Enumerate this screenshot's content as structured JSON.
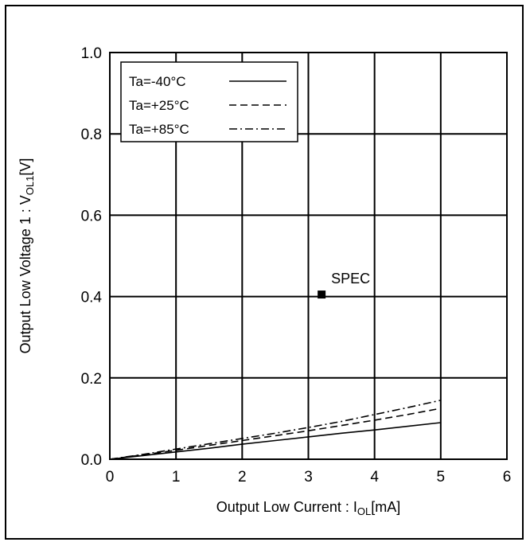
{
  "chart_data": {
    "type": "line",
    "xlabel_main": "Output Low Current : I",
    "xlabel_sub": "OL",
    "xlabel_unit": "[mA]",
    "ylabel_main": "Output Low Voltage 1 : V",
    "ylabel_sub": "OL1",
    "ylabel_unit": "[V]",
    "xlim": [
      0,
      6
    ],
    "ylim": [
      0,
      1.0
    ],
    "xticks": [
      "0",
      "1",
      "2",
      "3",
      "4",
      "5",
      "6"
    ],
    "yticks": [
      "0.0",
      "0.2",
      "0.4",
      "0.6",
      "0.8",
      "1.0"
    ],
    "grid": true,
    "legend_position": "top-left",
    "series": [
      {
        "name": "Ta=-40°C",
        "dash": "solid",
        "x": [
          0,
          0.5,
          1.0,
          1.5,
          2.0,
          2.5,
          3.0,
          3.5,
          4.0,
          4.5,
          5.0
        ],
        "y": [
          0.0,
          0.009,
          0.018,
          0.027,
          0.037,
          0.046,
          0.055,
          0.064,
          0.072,
          0.081,
          0.09
        ]
      },
      {
        "name": "Ta=+25°C",
        "dash": "dashed",
        "x": [
          0,
          0.5,
          1.0,
          1.5,
          2.0,
          2.5,
          3.0,
          3.5,
          4.0,
          4.5,
          5.0
        ],
        "y": [
          0.0,
          0.011,
          0.022,
          0.034,
          0.046,
          0.058,
          0.07,
          0.083,
          0.096,
          0.11,
          0.125
        ]
      },
      {
        "name": "Ta=+85°C",
        "dash": "dashdot",
        "x": [
          0,
          0.5,
          1.0,
          1.5,
          2.0,
          2.5,
          3.0,
          3.5,
          4.0,
          4.5,
          5.0
        ],
        "y": [
          0.0,
          0.012,
          0.025,
          0.038,
          0.051,
          0.064,
          0.078,
          0.093,
          0.11,
          0.127,
          0.145
        ]
      }
    ],
    "annotations": [
      {
        "label": "SPEC",
        "x": 3.2,
        "y": 0.405,
        "marker": "square"
      }
    ]
  }
}
